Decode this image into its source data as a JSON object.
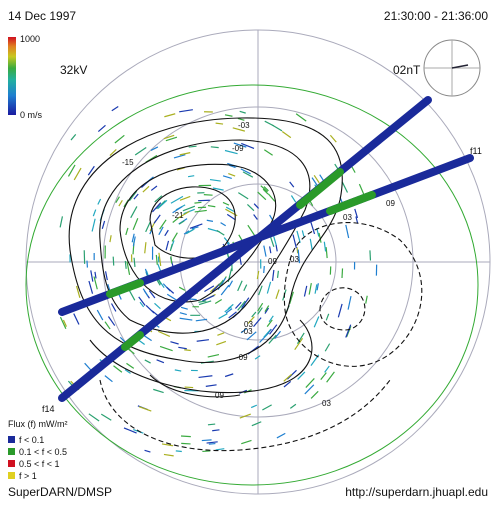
{
  "header": {
    "date": "14 Dec 1997",
    "time": "21:30:00 - 21:36:00"
  },
  "colorbar": {
    "max": "1000",
    "min": "0 m/s"
  },
  "potential": "32kV",
  "imf": "02nT",
  "tracks": [
    "f11",
    "f14"
  ],
  "contour_labels": [
    "-03",
    "-09",
    "-15",
    "-21",
    "-09",
    "-03",
    "09",
    "03",
    "03",
    "09",
    "03",
    "03",
    "09"
  ],
  "legend": {
    "title": "Flux (f) mW/m²",
    "items": [
      "f < 0.1",
      "0.1 < f < 0.5",
      "0.5 < f < 1",
      "f > 1"
    ]
  },
  "footer": {
    "left": "SuperDARN/DMSP",
    "right": "http://superdarn.jhuapl.edu"
  }
}
